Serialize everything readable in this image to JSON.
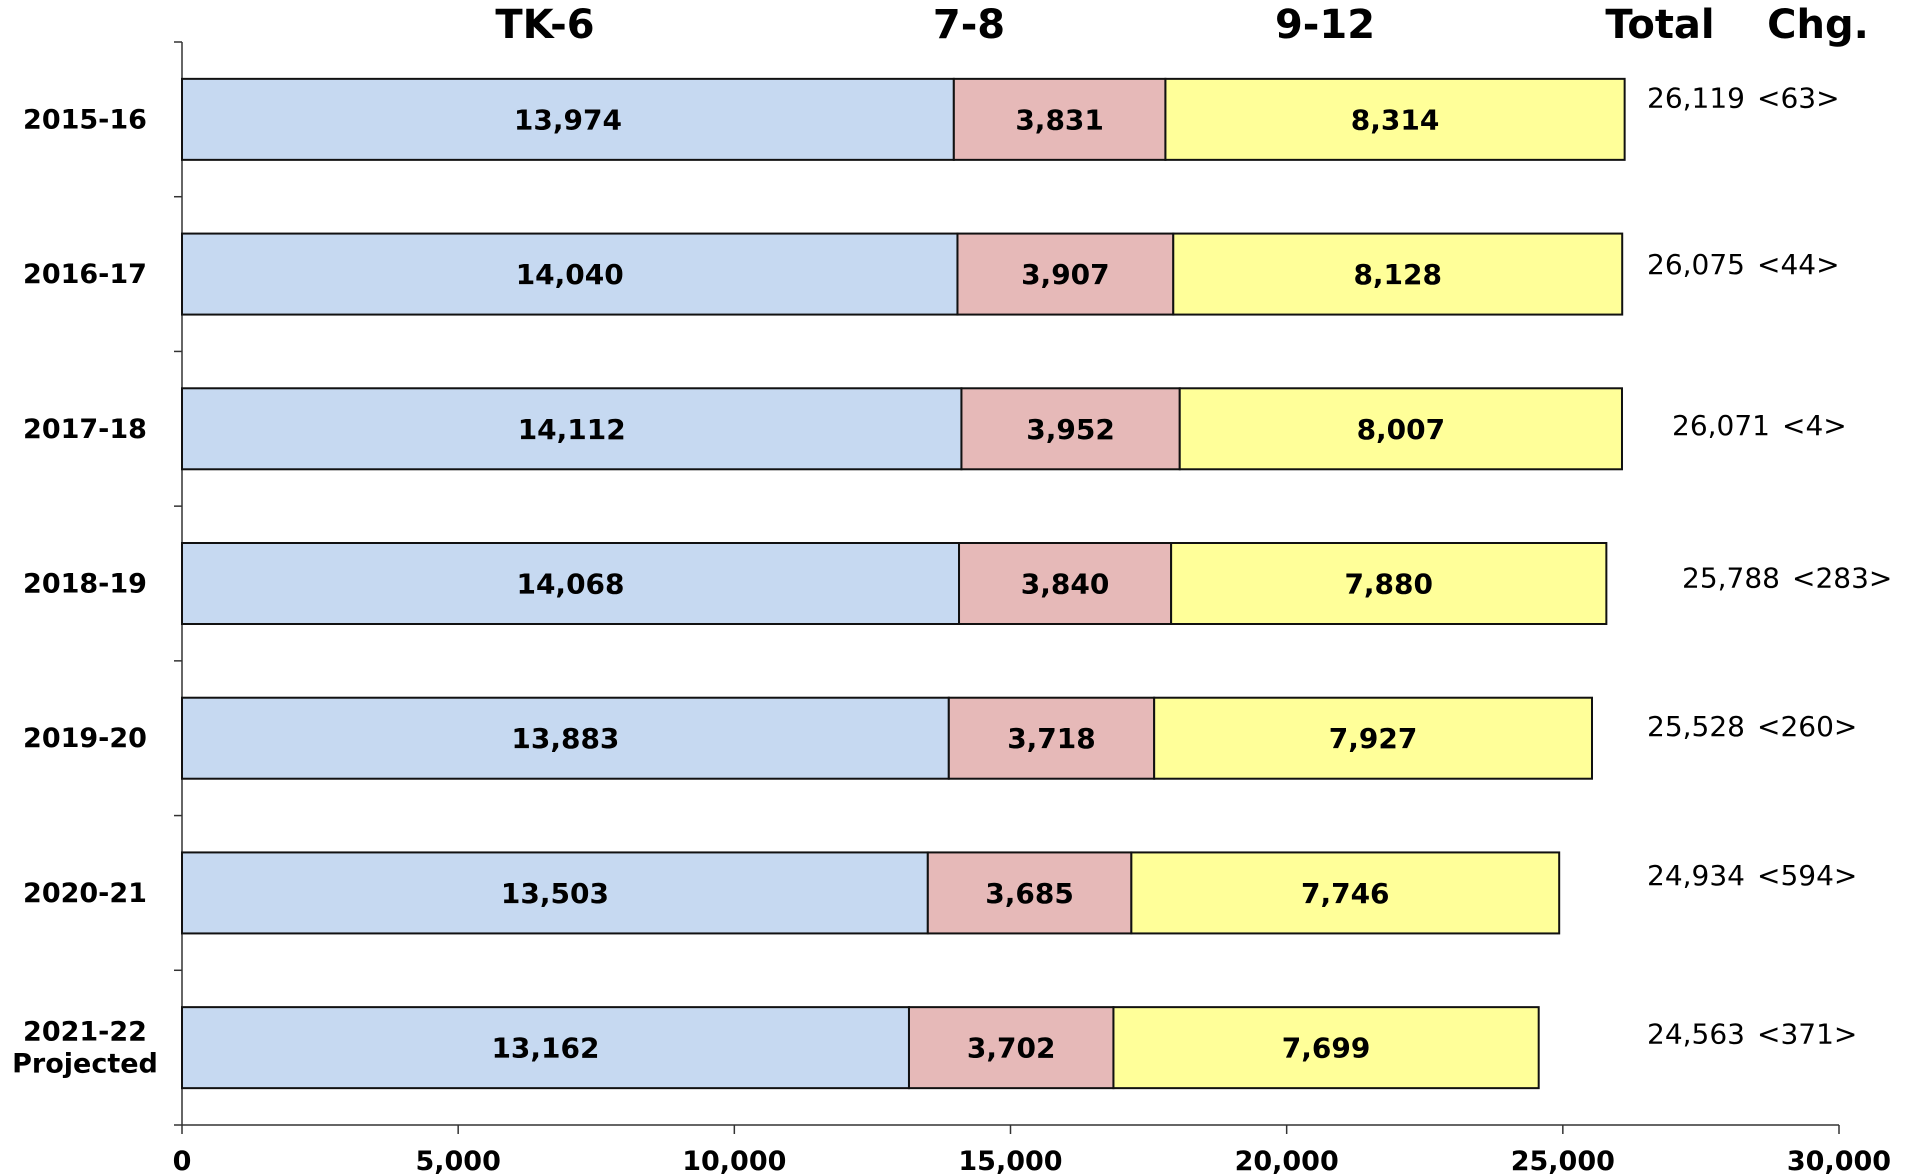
{
  "chart_data": {
    "type": "bar",
    "orientation": "horizontal",
    "stacked": true,
    "column_headers": [
      "TK-6",
      "7-8",
      "9-12",
      "Total",
      "Chg."
    ],
    "categories": [
      "2015-16",
      "2016-17",
      "2017-18",
      "2018-19",
      "2019-20",
      "2020-21",
      "2021-22 Projected"
    ],
    "category_lines": [
      [
        "2015-16"
      ],
      [
        "2016-17"
      ],
      [
        "2017-18"
      ],
      [
        "2018-19"
      ],
      [
        "2019-20"
      ],
      [
        "2020-21"
      ],
      [
        "2021-22",
        "Projected"
      ]
    ],
    "series": [
      {
        "name": "TK-6",
        "color": "#c6d9f1",
        "values": [
          13974,
          14040,
          14112,
          14068,
          13883,
          13503,
          13162
        ],
        "labels": [
          "13,974",
          "14,040",
          "14,112",
          "14,068",
          "13,883",
          "13,503",
          "13,162"
        ]
      },
      {
        "name": "7-8",
        "color": "#e6b9b8",
        "values": [
          3831,
          3907,
          3952,
          3840,
          3718,
          3685,
          3702
        ],
        "labels": [
          "3,831",
          "3,907",
          "3,952",
          "3,840",
          "3,718",
          "3,685",
          "3,702"
        ]
      },
      {
        "name": "9-12",
        "color": "#ffff99",
        "values": [
          8314,
          8128,
          8007,
          7880,
          7927,
          7746,
          7699
        ],
        "labels": [
          "8,314",
          "8,128",
          "8,007",
          "7,880",
          "7,927",
          "7,746",
          "7,699"
        ]
      }
    ],
    "totals": [
      "26,119",
      "26,075",
      "26,071",
      "25,788",
      "25,528",
      "24,934",
      "24,563"
    ],
    "changes": [
      "<63>",
      "<44>",
      "<4>",
      "<283>",
      "<260>",
      "<594>",
      "<371>"
    ],
    "xlim": [
      0,
      30000
    ],
    "xticks": [
      0,
      5000,
      10000,
      15000,
      20000,
      25000,
      30000
    ],
    "xtick_labels": [
      "0",
      "5,000",
      "10,000",
      "15,000",
      "20,000",
      "25,000",
      "30,000"
    ],
    "grid": false,
    "legend": "none"
  }
}
